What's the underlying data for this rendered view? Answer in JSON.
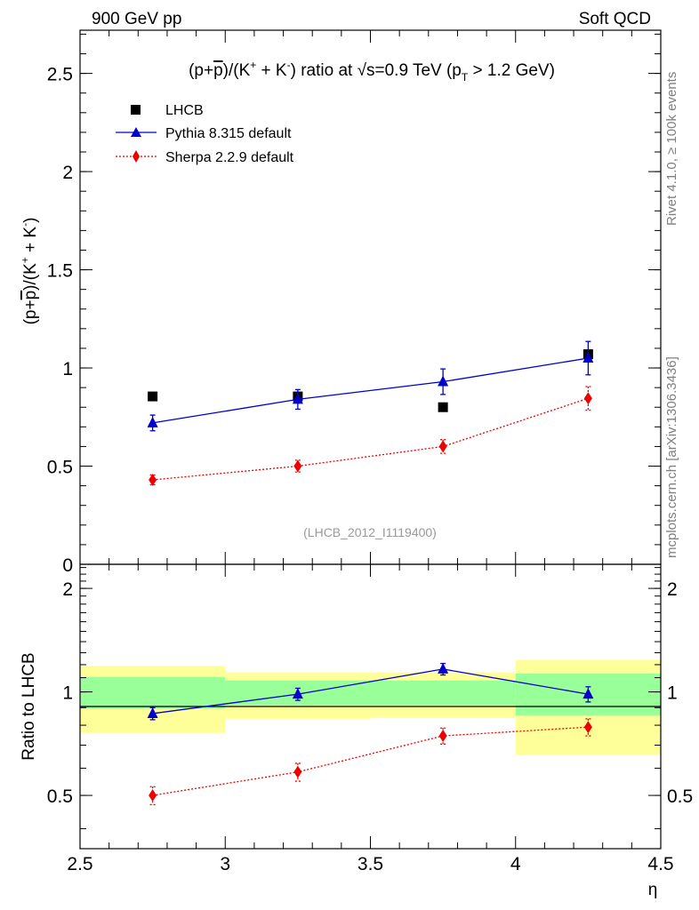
{
  "header": {
    "left": "900 GeV pp",
    "right": "Soft QCD"
  },
  "side_labels": {
    "rivet": "Rivet 4.1.0, ≥ 100k events",
    "mcplots": "mcplots.cern.ch [arXiv:1306.3436]"
  },
  "colors": {
    "data": "#000000",
    "pythia": "#0000cc",
    "sherpa": "#ee0000",
    "band_inner": "#99ff99",
    "band_outer": "#ffff99"
  },
  "chart_data": [
    {
      "type": "scatter",
      "panel": "main",
      "title": "(p+p̅)/(K⁺ + K⁻) ratio at √s=0.9 TeV (p_T > 1.2 GeV)",
      "title_parts": {
        "pre": "(p+",
        "pbar": "p",
        "mid1": ")/(K",
        "kp": "+",
        "mid2": " + K",
        "km": "-",
        "mid3": ") ratio at ",
        "sqrt": "√",
        "s": "s=0.9 TeV (p",
        "T": "T",
        "post": " > 1.2 GeV)"
      },
      "ylabel_parts": {
        "pre": "(p+",
        "pbar": "p",
        "mid1": ")/(K",
        "kp": "+",
        "mid2": " + K",
        "km": "-",
        "post": ")"
      },
      "analysis_label": "(LHCB_2012_I1119400)",
      "xlim": [
        2.5,
        4.5
      ],
      "ylim": [
        0,
        2.72
      ],
      "yticks": [
        {
          "v": 0,
          "label": "0"
        },
        {
          "v": 0.5,
          "label": "0.5"
        },
        {
          "v": 1,
          "label": "1"
        },
        {
          "v": 1.5,
          "label": "1.5"
        },
        {
          "v": 2,
          "label": "2"
        },
        {
          "v": 2.5,
          "label": "2.5"
        }
      ],
      "legend_position": "top-left",
      "series": [
        {
          "name": "LHCB",
          "marker": "square",
          "line": "none",
          "x": [
            2.75,
            3.25,
            3.75,
            4.25
          ],
          "y": [
            0.855,
            0.855,
            0.8,
            1.07
          ],
          "err": [
            0.0,
            0.0,
            0.0,
            0.0
          ]
        },
        {
          "name": "Pythia 8.315 default",
          "marker": "triangle",
          "line": "solid",
          "x": [
            2.75,
            3.25,
            3.75,
            4.25
          ],
          "y": [
            0.72,
            0.84,
            0.93,
            1.05
          ],
          "err": [
            0.04,
            0.05,
            0.065,
            0.085
          ]
        },
        {
          "name": "Sherpa 2.2.9 default",
          "marker": "diamond",
          "line": "dotted",
          "x": [
            2.75,
            3.25,
            3.75,
            4.25
          ],
          "y": [
            0.43,
            0.5,
            0.6,
            0.845
          ],
          "err": [
            0.025,
            0.03,
            0.035,
            0.06
          ]
        }
      ]
    },
    {
      "type": "scatter",
      "panel": "ratio",
      "ylabel": "Ratio to LHCB",
      "xlabel": "η",
      "xlim": [
        2.5,
        4.5
      ],
      "ylim": [
        0.35,
        2.35
      ],
      "xticks": [
        {
          "v": 2.5,
          "label": "2.5"
        },
        {
          "v": 3,
          "label": "3"
        },
        {
          "v": 3.5,
          "label": "3.5"
        },
        {
          "v": 4,
          "label": "4"
        },
        {
          "v": 4.5,
          "label": "4.5"
        }
      ],
      "yticks": [
        {
          "v": 0.5,
          "label": "0.5"
        },
        {
          "v": 1,
          "label": "1"
        },
        {
          "v": 2,
          "label": "2"
        }
      ],
      "reference_line": 1.0,
      "bands": [
        {
          "x": [
            2.5,
            3.0
          ],
          "inner": [
            0.895,
            1.105
          ],
          "outer": [
            0.76,
            1.19
          ]
        },
        {
          "x": [
            3.0,
            3.5
          ],
          "inner": [
            0.915,
            1.08
          ],
          "outer": [
            0.835,
            1.14
          ]
        },
        {
          "x": [
            3.5,
            4.0
          ],
          "inner": [
            0.915,
            1.08
          ],
          "outer": [
            0.84,
            1.14
          ]
        },
        {
          "x": [
            4.0,
            4.5
          ],
          "inner": [
            0.855,
            1.13
          ],
          "outer": [
            0.655,
            1.24
          ]
        }
      ],
      "series": [
        {
          "name": "Pythia 8.315 default",
          "marker": "triangle",
          "line": "solid",
          "x": [
            2.75,
            3.25,
            3.75,
            4.25
          ],
          "y": [
            0.865,
            0.985,
            1.165,
            0.985
          ],
          "err": [
            0.035,
            0.04,
            0.045,
            0.05
          ]
        },
        {
          "name": "Sherpa 2.2.9 default",
          "marker": "diamond",
          "line": "dotted",
          "x": [
            2.75,
            3.25,
            3.75,
            4.25
          ],
          "y": [
            0.5,
            0.585,
            0.745,
            0.79
          ],
          "err": [
            0.03,
            0.035,
            0.04,
            0.045
          ]
        }
      ]
    }
  ]
}
